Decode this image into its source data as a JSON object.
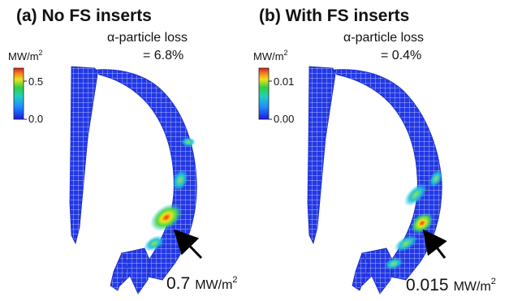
{
  "panels": [
    {
      "title": "(a) No FS inserts",
      "loss_label": "α-particle loss",
      "loss_value": "= 6.8%",
      "colorbar": {
        "unit": "MW/m",
        "unit_exp": "2",
        "max_label": "0.5",
        "min_label": "0.0"
      },
      "peak_value": "0.7",
      "peak_unit": "MW/m",
      "peak_unit_exp": "2"
    },
    {
      "title": "(b) With FS inserts",
      "loss_label": "α-particle loss",
      "loss_value": "= 0.4%",
      "colorbar": {
        "unit": "MW/m",
        "unit_exp": "2",
        "max_label": "0.01",
        "min_label": "0.00"
      },
      "peak_value": "0.015",
      "peak_unit": "MW/m",
      "peak_unit_exp": "2"
    }
  ],
  "colors": {
    "mesh_blue": "#2233e0",
    "hot_red": "#e8341c",
    "hot_yellow": "#f2e21a",
    "cool_cyan": "#21c4d8"
  }
}
